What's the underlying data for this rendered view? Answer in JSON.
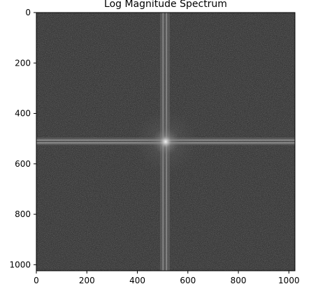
{
  "chart_data": {
    "type": "heatmap",
    "title": "Log Magnitude Spectrum",
    "xlabel": "",
    "ylabel": "",
    "xlim": [
      0,
      1024
    ],
    "ylim": [
      1024,
      0
    ],
    "x_ticks": [
      0,
      200,
      400,
      600,
      800,
      1000
    ],
    "y_ticks": [
      0,
      200,
      400,
      600,
      800,
      1000
    ],
    "x_tick_labels": [
      "0",
      "200",
      "400",
      "600",
      "800",
      "1000"
    ],
    "y_tick_labels": [
      "0",
      "200",
      "400",
      "600",
      "800",
      "1000"
    ],
    "colormap": "gray",
    "grid": false,
    "image_content": {
      "background_color": "#4a4a4a",
      "center": [
        512,
        512
      ],
      "horizontal_streak_row": 512,
      "vertical_streak_col": 512,
      "center_glow_color": "#e6e6e6"
    }
  }
}
